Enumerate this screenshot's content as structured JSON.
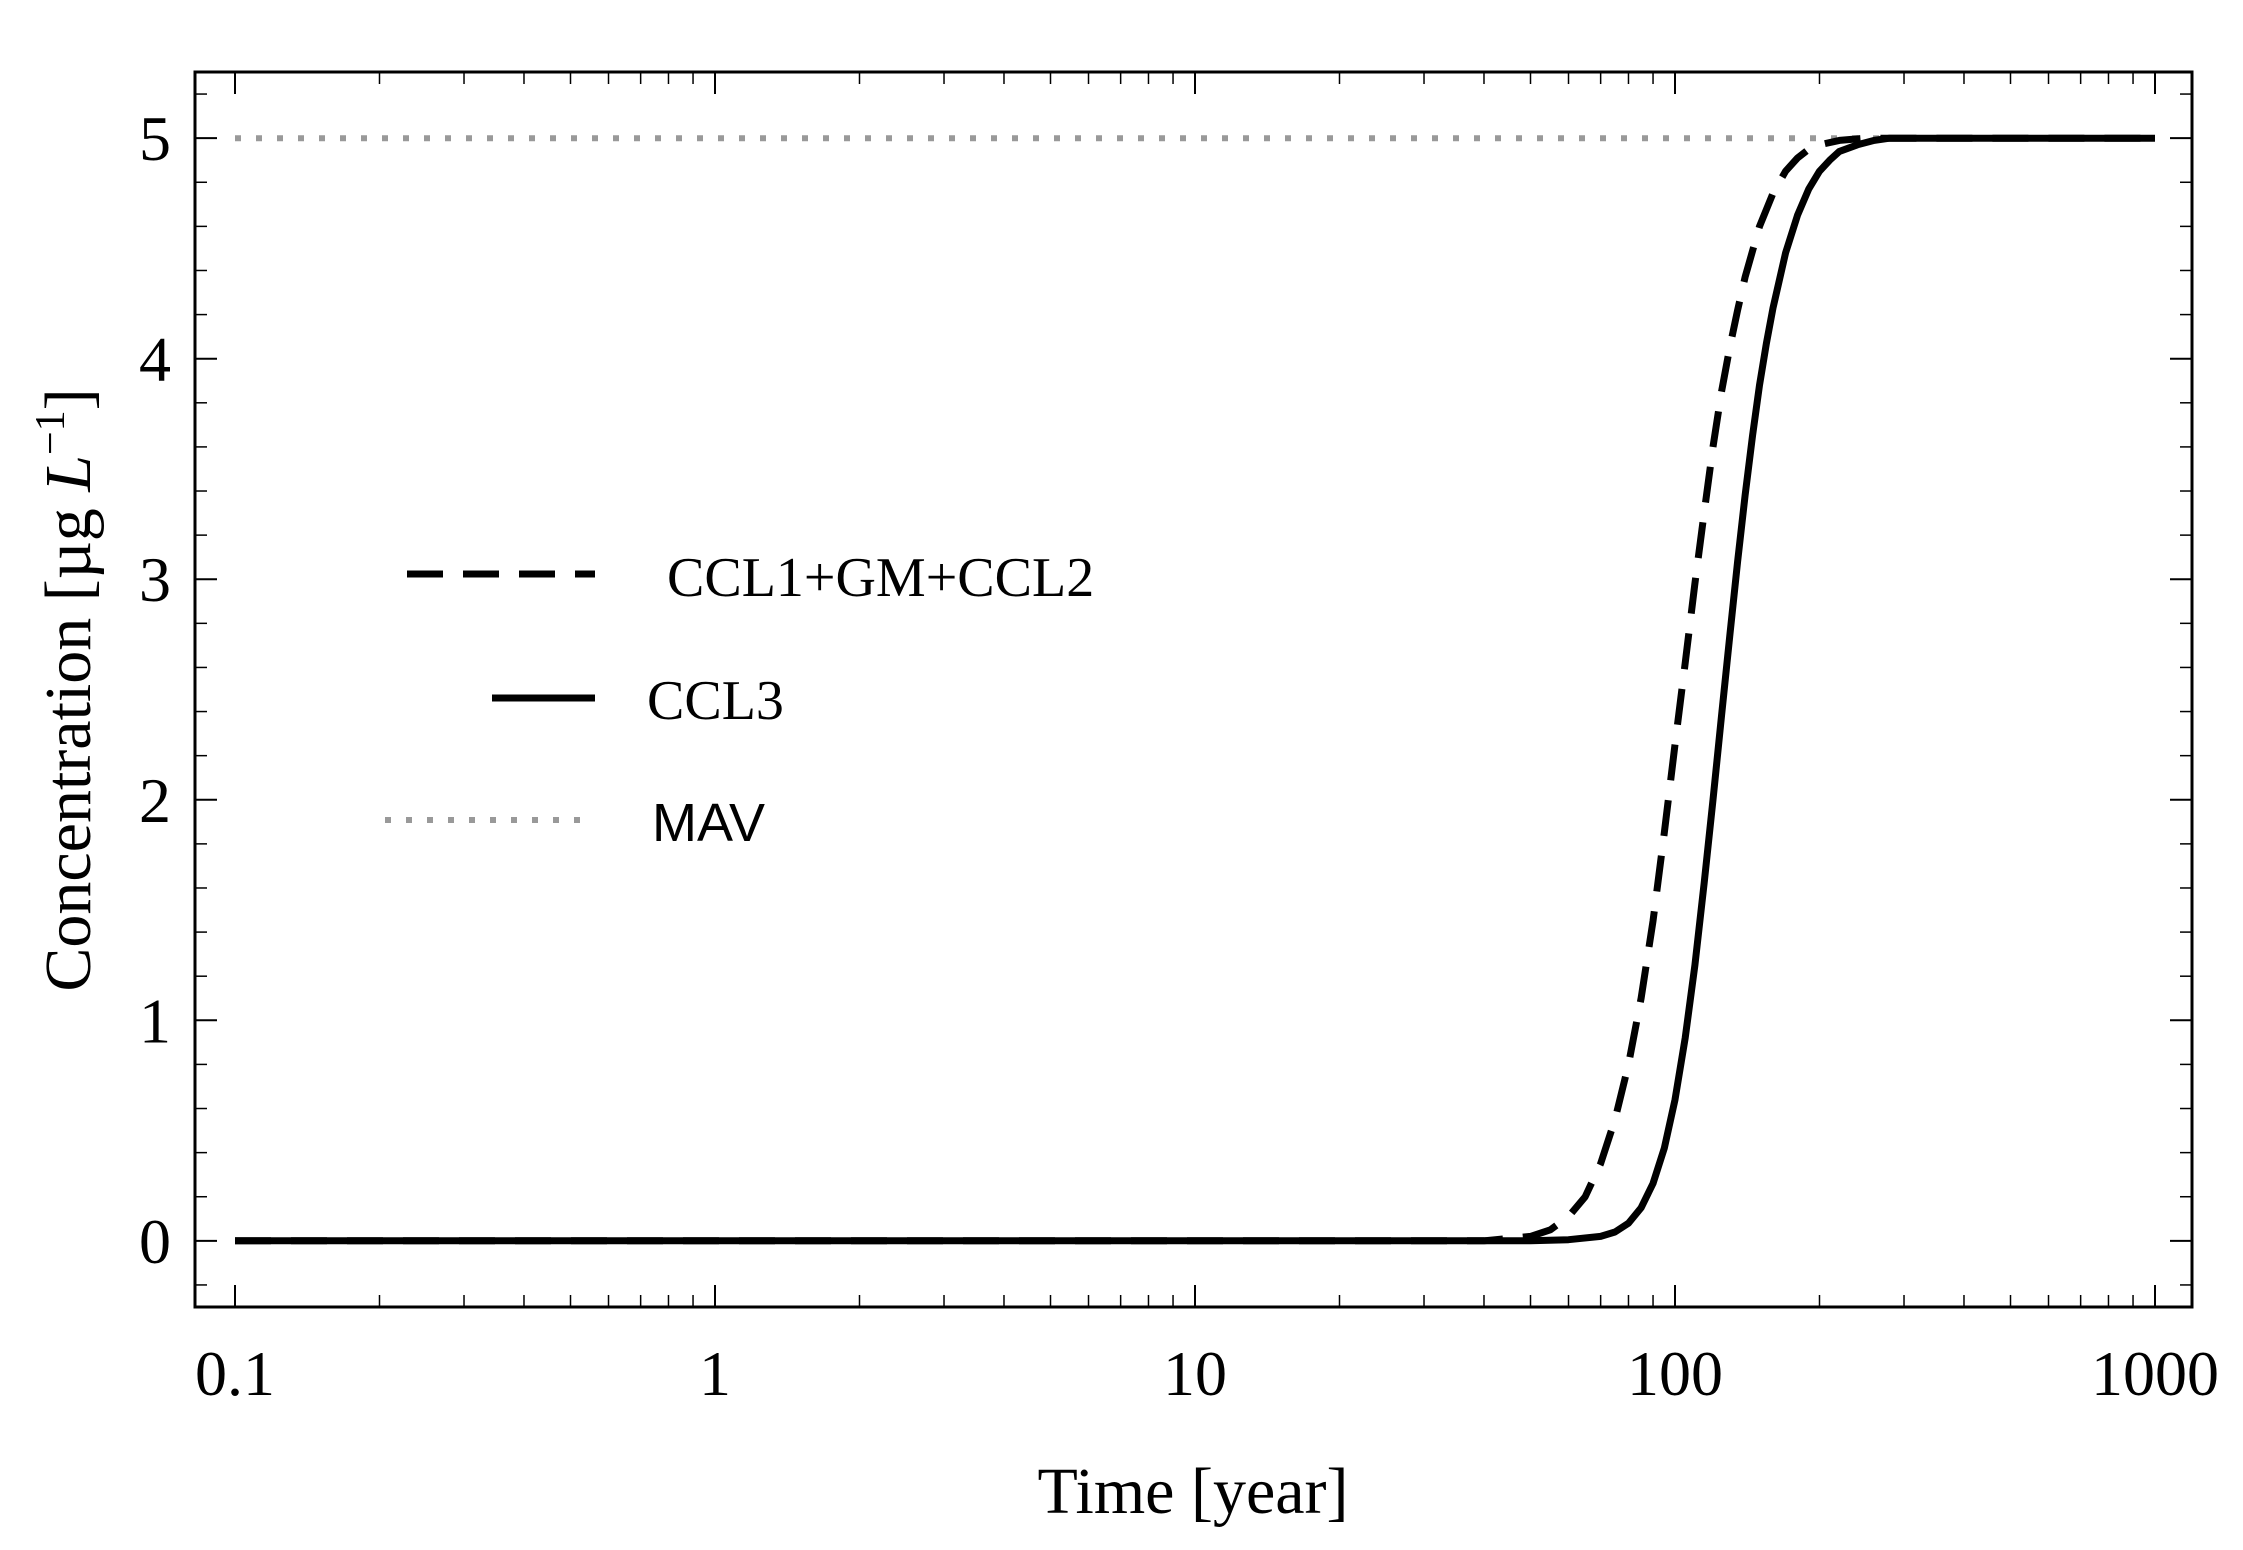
{
  "chart_data": {
    "type": "line",
    "xscale": "log",
    "xlabel": "Time [year]",
    "ylabel": "Concentration [µg L⁻¹]",
    "ylabel_parts": {
      "base": "Concentration [µg ",
      "unit": "L",
      "exp": "−1",
      "close": "]"
    },
    "xlim": [
      0.1,
      1000
    ],
    "ylim": [
      -0.3,
      5.3
    ],
    "xticks": [
      {
        "value": 0.1,
        "label": "0.1"
      },
      {
        "value": 1,
        "label": "1"
      },
      {
        "value": 10,
        "label": "10"
      },
      {
        "value": 100,
        "label": "100"
      },
      {
        "value": 1000,
        "label": "1000"
      }
    ],
    "yticks": [
      {
        "value": 0,
        "label": "0"
      },
      {
        "value": 1,
        "label": "1"
      },
      {
        "value": 2,
        "label": "2"
      },
      {
        "value": 3,
        "label": "3"
      },
      {
        "value": 4,
        "label": "4"
      },
      {
        "value": 5,
        "label": "5"
      }
    ],
    "series": [
      {
        "name": "CCL1+GM+CCL2",
        "style": "dashed",
        "color": "#000000",
        "x": [
          0.1,
          1,
          10,
          40,
          50,
          55,
          60,
          65,
          70,
          75,
          80,
          85,
          90,
          95,
          100,
          105,
          110,
          115,
          120,
          125,
          130,
          135,
          140,
          150,
          160,
          170,
          180,
          190,
          200,
          220,
          250,
          300,
          400,
          1000
        ],
        "y": [
          0,
          0,
          0,
          0,
          0.02,
          0.05,
          0.11,
          0.2,
          0.35,
          0.55,
          0.8,
          1.1,
          1.45,
          1.85,
          2.25,
          2.62,
          2.98,
          3.3,
          3.6,
          3.85,
          4.05,
          4.22,
          4.37,
          4.6,
          4.75,
          4.85,
          4.91,
          4.95,
          4.97,
          4.99,
          5.0,
          5.0,
          5.0,
          5.0
        ]
      },
      {
        "name": "CCL3",
        "style": "solid",
        "color": "#000000",
        "x": [
          0.1,
          1,
          10,
          50,
          60,
          70,
          75,
          80,
          85,
          90,
          95,
          100,
          105,
          110,
          115,
          120,
          125,
          130,
          135,
          140,
          145,
          150,
          155,
          160,
          170,
          180,
          190,
          200,
          210,
          220,
          240,
          260,
          280,
          300,
          400,
          1000
        ],
        "y": [
          0,
          0,
          0,
          0,
          0.005,
          0.02,
          0.04,
          0.08,
          0.15,
          0.26,
          0.42,
          0.64,
          0.92,
          1.25,
          1.62,
          2.0,
          2.38,
          2.74,
          3.08,
          3.38,
          3.65,
          3.88,
          4.07,
          4.23,
          4.48,
          4.65,
          4.77,
          4.85,
          4.9,
          4.94,
          4.97,
          4.99,
          5.0,
          5.0,
          5.0,
          5.0
        ]
      },
      {
        "name": "MAV",
        "style": "dotted",
        "color": "#999999",
        "x": [
          0.1,
          1000
        ],
        "y": [
          5,
          5
        ]
      }
    ],
    "legend": [
      {
        "label": "CCL1+GM+CCL2",
        "style": "dashed"
      },
      {
        "label": "CCL3",
        "style": "solid"
      },
      {
        "label": "MAV",
        "style": "dotted"
      }
    ],
    "legend_position": "center-left",
    "grid": false
  }
}
